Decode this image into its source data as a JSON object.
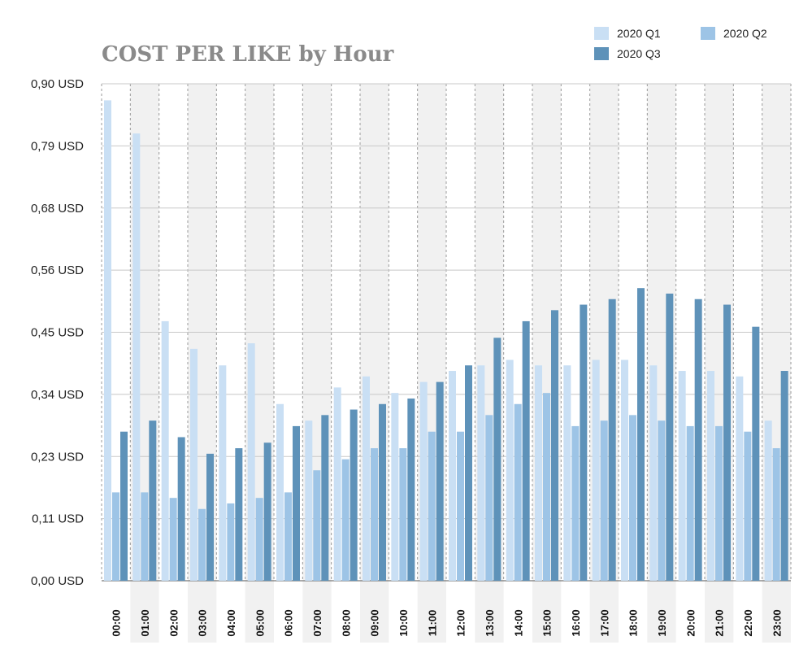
{
  "chart_data": {
    "type": "bar",
    "title": "COST PER LIKE by Hour",
    "xlabel": "",
    "ylabel": "",
    "ylim": [
      0,
      0.9
    ],
    "y_ticks": [
      "0,00 USD",
      "0,11 USD",
      "0,23 USD",
      "0,34 USD",
      "0,45 USD",
      "0,56 USD",
      "0,68 USD",
      "0,79 USD",
      "0,90 USD"
    ],
    "grid": true,
    "legend_position": "top-right",
    "categories": [
      "00:00",
      "01:00",
      "02:00",
      "03:00",
      "04:00",
      "05:00",
      "06:00",
      "07:00",
      "08:00",
      "09:00",
      "10:00",
      "11:00",
      "12:00",
      "13:00",
      "14:00",
      "15:00",
      "16:00",
      "17:00",
      "18:00",
      "19:00",
      "20:00",
      "21:00",
      "22:00",
      "23:00"
    ],
    "series": [
      {
        "name": "2020 Q1",
        "color": "#c9dff4",
        "values": [
          0.87,
          0.81,
          0.47,
          0.42,
          0.39,
          0.43,
          0.32,
          0.29,
          0.35,
          0.37,
          0.34,
          0.36,
          0.38,
          0.39,
          0.4,
          0.39,
          0.39,
          0.4,
          0.4,
          0.39,
          0.38,
          0.38,
          0.37,
          0.29
        ]
      },
      {
        "name": "2020 Q2",
        "color": "#9dc4e6",
        "values": [
          0.16,
          0.16,
          0.15,
          0.13,
          0.14,
          0.15,
          0.16,
          0.2,
          0.22,
          0.24,
          0.24,
          0.27,
          0.27,
          0.3,
          0.32,
          0.34,
          0.28,
          0.29,
          0.3,
          0.29,
          0.28,
          0.28,
          0.27,
          0.24
        ]
      },
      {
        "name": "2020 Q3",
        "color": "#5e92b9",
        "values": [
          0.27,
          0.29,
          0.26,
          0.23,
          0.24,
          0.25,
          0.28,
          0.3,
          0.31,
          0.32,
          0.33,
          0.36,
          0.39,
          0.44,
          0.47,
          0.49,
          0.5,
          0.51,
          0.53,
          0.52,
          0.51,
          0.5,
          0.46,
          0.38
        ]
      }
    ]
  }
}
